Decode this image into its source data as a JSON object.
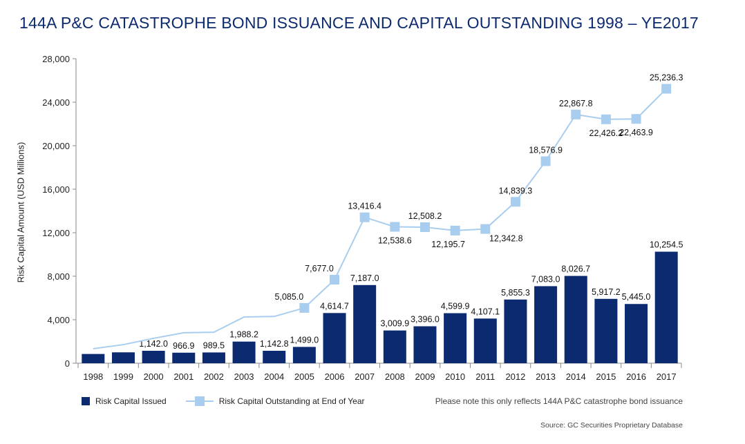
{
  "chart_data": {
    "type": "bar+line",
    "title": "144A P&C CATASTROPHE BOND ISSUANCE AND CAPITAL OUTSTANDING 1998 – YE2017",
    "ylabel": "Risk Capital Amount (USD Millions)",
    "xlabel": "",
    "ylim": [
      0,
      28000
    ],
    "yticks": [
      "0",
      "4,000",
      "8,000",
      "12,000",
      "16,000",
      "20,000",
      "24,000",
      "28,000"
    ],
    "categories": [
      "1998",
      "1999",
      "2000",
      "2001",
      "2002",
      "2003",
      "2004",
      "2005",
      "2006",
      "2007",
      "2008",
      "2009",
      "2010",
      "2011",
      "2012",
      "2013",
      "2014",
      "2015",
      "2016",
      "2017"
    ],
    "series": [
      {
        "name": "Risk Capital Issued",
        "type": "bar",
        "color": "#0b2a6f",
        "values": [
          850,
          1000,
          1142.0,
          966.9,
          989.5,
          1988.2,
          1142.8,
          1499.0,
          4614.7,
          7187.0,
          3009.9,
          3396.0,
          4599.9,
          4107.1,
          5855.3,
          7083.0,
          8026.7,
          5917.2,
          5445.0,
          10254.5
        ],
        "labels": [
          "",
          "",
          "1,142.0",
          "966.9",
          "989.5",
          "1,988.2",
          "1,142.8",
          "1,499.0",
          "4,614.7",
          "7,187.0",
          "3,009.9",
          "3,396.0",
          "4,599.9",
          "4,107.1",
          "5,855.3",
          "7,083.0",
          "8,026.7",
          "5,917.2",
          "5,445.0",
          "10,254.5"
        ]
      },
      {
        "name": "Risk Capital Outstanding at End of Year",
        "type": "line",
        "color": "#a8cdef",
        "values": [
          1330,
          1710,
          2290,
          2800,
          2850,
          4250,
          4300,
          5085.0,
          7677.0,
          13416.4,
          12538.6,
          12508.2,
          12195.7,
          12342.8,
          14839.3,
          18576.9,
          22867.8,
          22426.2,
          22463.9,
          25236.3
        ],
        "labels": [
          "",
          "",
          "",
          "",
          "",
          "",
          "",
          "5,085.0",
          "7,677.0",
          "13,416.4",
          "12,538.6",
          "12,508.2",
          "12,195.7",
          "12,342.8",
          "14,839.3",
          "18,576.9",
          "22,867.8",
          "22,426.2",
          "22,463.9",
          "25,236.3"
        ]
      }
    ],
    "legend": "bottom-left",
    "grid": false
  },
  "note": "Please note this only reflects 144A P&C catastrophe bond issuance",
  "source": "Source: GC Securities Proprietary Database"
}
